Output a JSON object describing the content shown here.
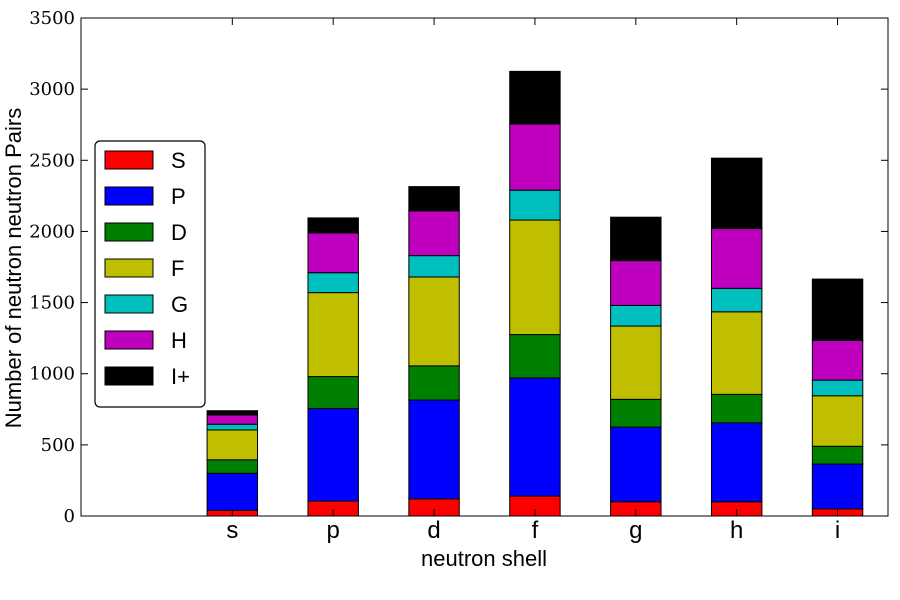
{
  "chart_data": {
    "type": "bar",
    "stacked": true,
    "title": "",
    "xlabel": "neutron shell",
    "ylabel": "Number of neutron neutron Pairs",
    "ylim": [
      0,
      3500
    ],
    "yticks": [
      0,
      500,
      1000,
      1500,
      2000,
      2500,
      3000,
      3500
    ],
    "xlim": [
      -1.5,
      6.5
    ],
    "categories": [
      "s",
      "p",
      "d",
      "f",
      "g",
      "h",
      "i"
    ],
    "grid": false,
    "legend_position": "center-left",
    "series": [
      {
        "name": "S",
        "color": "#ff0000",
        "values": [
          40,
          105,
          120,
          140,
          100,
          100,
          50
        ]
      },
      {
        "name": "P",
        "color": "#0000ff",
        "values": [
          260,
          650,
          695,
          830,
          525,
          555,
          315
        ]
      },
      {
        "name": "D",
        "color": "#008000",
        "values": [
          95,
          225,
          240,
          305,
          195,
          200,
          125
        ]
      },
      {
        "name": "F",
        "color": "#bfbf00",
        "values": [
          210,
          590,
          625,
          805,
          515,
          580,
          355
        ]
      },
      {
        "name": "G",
        "color": "#00bfbf",
        "values": [
          40,
          140,
          150,
          210,
          145,
          165,
          110
        ]
      },
      {
        "name": "H",
        "color": "#bf00bf",
        "values": [
          65,
          280,
          315,
          465,
          315,
          420,
          280
        ]
      },
      {
        "name": "I+",
        "color": "#000000",
        "values": [
          30,
          105,
          170,
          370,
          305,
          495,
          430
        ]
      }
    ]
  }
}
